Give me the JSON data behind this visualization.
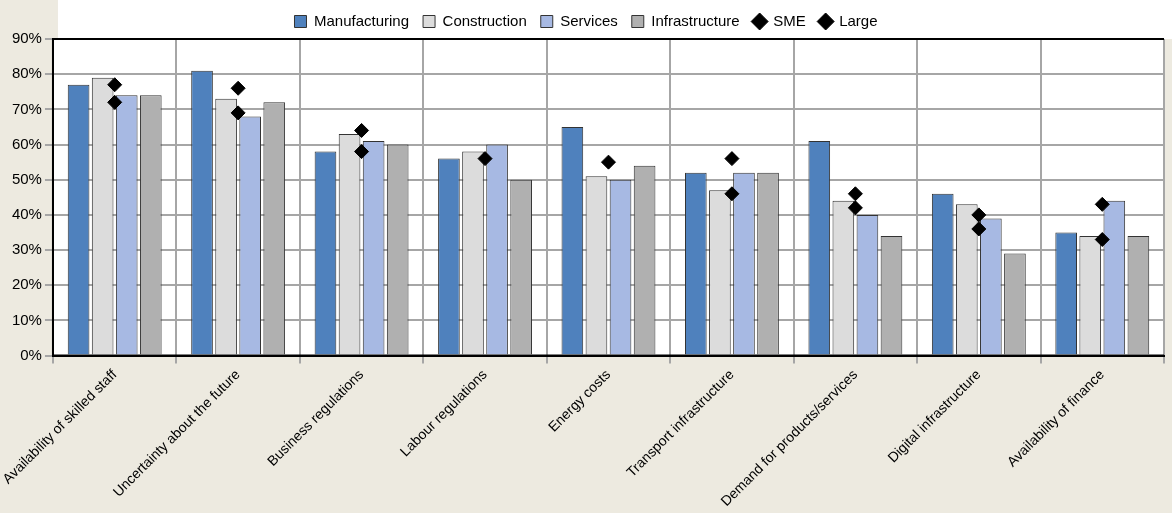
{
  "chart_data": {
    "type": "bar",
    "categories": [
      "Availability of skilled staff",
      "Uncertainty about the future",
      "Business regulations",
      "Labour regulations",
      "Energy costs",
      "Transport infrastructure",
      "Demand for products/services",
      "Digital infrastructure",
      "Availability of finance"
    ],
    "series": [
      {
        "name": "Manufacturing",
        "color": "#4f81bd",
        "values": [
          77,
          81,
          58,
          56,
          65,
          52,
          61,
          46,
          35
        ]
      },
      {
        "name": "Construction",
        "color": "#dcdcdc",
        "values": [
          79,
          73,
          63,
          58,
          51,
          47,
          44,
          43,
          34
        ]
      },
      {
        "name": "Services",
        "color": "#a7b9e3",
        "values": [
          74,
          68,
          61,
          60,
          50,
          52,
          40,
          39,
          44
        ]
      },
      {
        "name": "Infrastructure",
        "color": "#b0b0b0",
        "values": [
          74,
          72,
          60,
          50,
          54,
          52,
          34,
          29,
          34
        ]
      },
      {
        "name": "SME",
        "type": "scatter",
        "color": "#000000",
        "values": [
          77,
          76,
          64,
          56,
          55,
          56,
          46,
          40,
          43
        ]
      },
      {
        "name": "Large",
        "type": "scatter",
        "color": "#000000",
        "values": [
          72,
          69,
          58,
          null,
          null,
          46,
          42,
          36,
          33
        ]
      }
    ],
    "ylim": [
      0,
      90
    ],
    "yticks": [
      {
        "value": 0,
        "label": "0%"
      },
      {
        "value": 10,
        "label": "10%"
      },
      {
        "value": 20,
        "label": "20%"
      },
      {
        "value": 30,
        "label": "30%"
      },
      {
        "value": 40,
        "label": "40%"
      },
      {
        "value": 50,
        "label": "50%"
      },
      {
        "value": 60,
        "label": "60%"
      },
      {
        "value": 70,
        "label": "70%"
      },
      {
        "value": 80,
        "label": "80%"
      },
      {
        "value": 90,
        "label": "90%"
      }
    ],
    "grid": true,
    "legend": "top",
    "marker": "diamond"
  }
}
